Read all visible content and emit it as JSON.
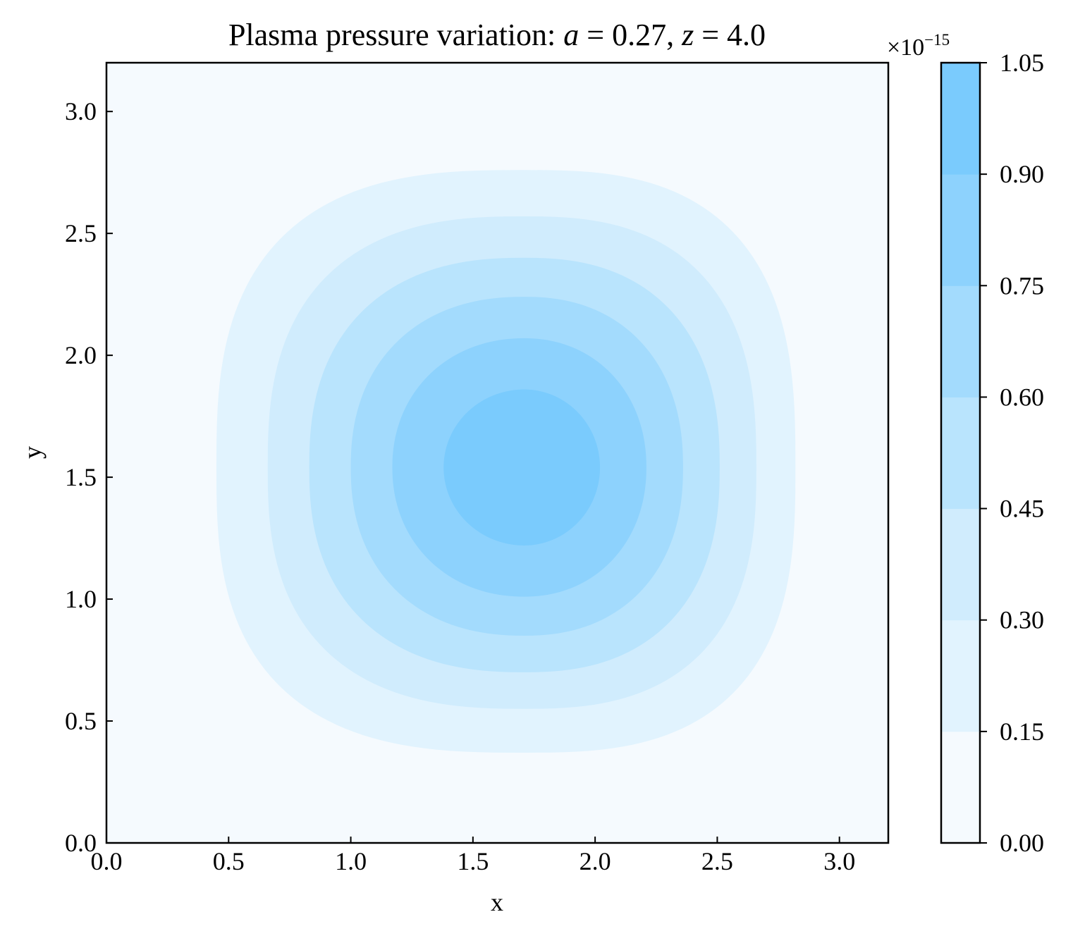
{
  "chart_data": {
    "type": "contourf",
    "title_parts": {
      "prefix": "Plasma pressure variation: ",
      "var_a": "a",
      "eq_a": " = 0.27, ",
      "var_z": "z",
      "eq_z": " = 4.0"
    },
    "xlabel": "x",
    "ylabel": "y",
    "xlim": [
      0.0,
      3.2
    ],
    "ylim": [
      0.0,
      3.2
    ],
    "x_ticks": [
      "0.0",
      "0.5",
      "1.0",
      "1.5",
      "2.0",
      "2.5",
      "3.0"
    ],
    "y_ticks": [
      "0.0",
      "0.5",
      "1.0",
      "1.5",
      "2.0",
      "2.5",
      "3.0"
    ],
    "x_tick_values": [
      0.0,
      0.5,
      1.0,
      1.5,
      2.0,
      2.5,
      3.0
    ],
    "y_tick_values": [
      0.0,
      0.5,
      1.0,
      1.5,
      2.0,
      2.5,
      3.0
    ],
    "center": {
      "x": 1.71,
      "y": 1.54
    },
    "contours": [
      {
        "level": 0.15,
        "x_min": 0.45,
        "x_max": 2.82,
        "y_min": 0.37,
        "y_max": 2.76,
        "shape_exp": 2.8,
        "color": "#e1f3fe"
      },
      {
        "level": 0.3,
        "x_min": 0.66,
        "x_max": 2.66,
        "y_min": 0.55,
        "y_max": 2.57,
        "shape_exp": 2.6,
        "color": "#d0ecfd"
      },
      {
        "level": 0.45,
        "x_min": 0.83,
        "x_max": 2.51,
        "y_min": 0.7,
        "y_max": 2.4,
        "shape_exp": 2.4,
        "color": "#b9e4fd"
      },
      {
        "level": 0.6,
        "x_min": 1.0,
        "x_max": 2.36,
        "y_min": 0.85,
        "y_max": 2.24,
        "shape_exp": 2.25,
        "color": "#a3dbfd"
      },
      {
        "level": 0.75,
        "x_min": 1.17,
        "x_max": 2.21,
        "y_min": 1.01,
        "y_max": 2.07,
        "shape_exp": 2.1,
        "color": "#8dd2fd"
      },
      {
        "level": 0.9,
        "x_min": 1.38,
        "x_max": 2.02,
        "y_min": 1.22,
        "y_max": 1.86,
        "shape_exp": 2.0,
        "color": "#7acbfd"
      }
    ],
    "background_color": "#f5fafe",
    "colorbar": {
      "levels": [
        0.0,
        0.15,
        0.3,
        0.45,
        0.6,
        0.75,
        0.9,
        1.05
      ],
      "tick_labels": [
        "0.00",
        "0.15",
        "0.30",
        "0.45",
        "0.60",
        "0.75",
        "0.90",
        "1.05"
      ],
      "colors": [
        "#f5fafe",
        "#e1f3fe",
        "#d0ecfd",
        "#b9e4fd",
        "#a3dbfd",
        "#8dd2fd",
        "#7acbfd"
      ],
      "offset_prefix": "×10",
      "offset_exponent": "−15"
    }
  }
}
